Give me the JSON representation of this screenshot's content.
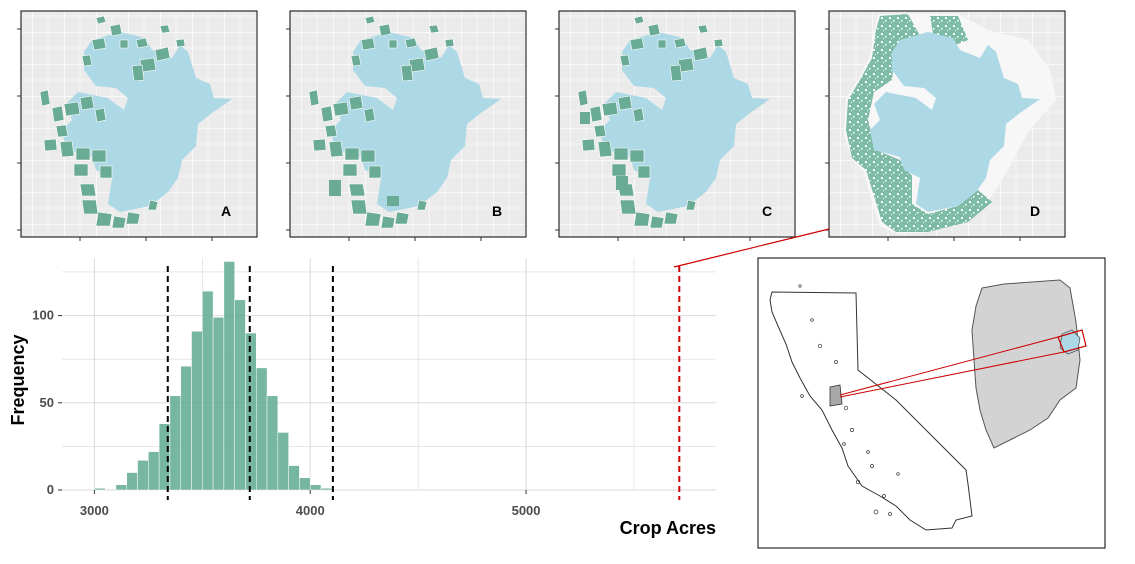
{
  "panels": [
    {
      "label": "A"
    },
    {
      "label": "B"
    },
    {
      "label": "C"
    },
    {
      "label": "D"
    }
  ],
  "colors": {
    "bars": "#5fa991",
    "crop_fields": "#6aab96",
    "urban_area": "#add8e6",
    "panel_bg": "#ebebeb",
    "observed_line": "#cc0000",
    "quantile_lines": "#000000",
    "inset_county": "#d3d3d3",
    "inset_highlight": "#cc0000"
  },
  "icons": {
    "state_outline": "california-outline-icon",
    "county_outline": "county-outline-icon"
  },
  "chart_data": {
    "type": "bar",
    "xlabel": "Crop Acres",
    "ylabel": "Frequency",
    "xlim": [
      2850,
      5880
    ],
    "ylim": [
      0,
      133
    ],
    "x_ticks": [
      3000,
      4000,
      5000
    ],
    "y_ticks": [
      0,
      50,
      100
    ],
    "bin_width": 50,
    "bins": [
      {
        "x": 3025,
        "count": 1
      },
      {
        "x": 3075,
        "count": 0
      },
      {
        "x": 3125,
        "count": 3
      },
      {
        "x": 3175,
        "count": 10
      },
      {
        "x": 3225,
        "count": 17
      },
      {
        "x": 3275,
        "count": 22
      },
      {
        "x": 3325,
        "count": 38
      },
      {
        "x": 3375,
        "count": 54
      },
      {
        "x": 3425,
        "count": 71
      },
      {
        "x": 3475,
        "count": 91
      },
      {
        "x": 3525,
        "count": 114
      },
      {
        "x": 3575,
        "count": 99
      },
      {
        "x": 3625,
        "count": 131
      },
      {
        "x": 3675,
        "count": 109
      },
      {
        "x": 3725,
        "count": 90
      },
      {
        "x": 3775,
        "count": 70
      },
      {
        "x": 3825,
        "count": 54
      },
      {
        "x": 3875,
        "count": 33
      },
      {
        "x": 3925,
        "count": 14
      },
      {
        "x": 3975,
        "count": 7
      },
      {
        "x": 4025,
        "count": 3
      },
      {
        "x": 4075,
        "count": 1
      }
    ],
    "vlines": [
      {
        "x": 3340,
        "style": "dashed",
        "color": "#000000"
      },
      {
        "x": 3720,
        "style": "dashed",
        "color": "#000000"
      },
      {
        "x": 4105,
        "style": "dashed",
        "color": "#000000"
      },
      {
        "x": 5710,
        "style": "dashed",
        "color": "#cc0000"
      }
    ],
    "grid": true
  }
}
